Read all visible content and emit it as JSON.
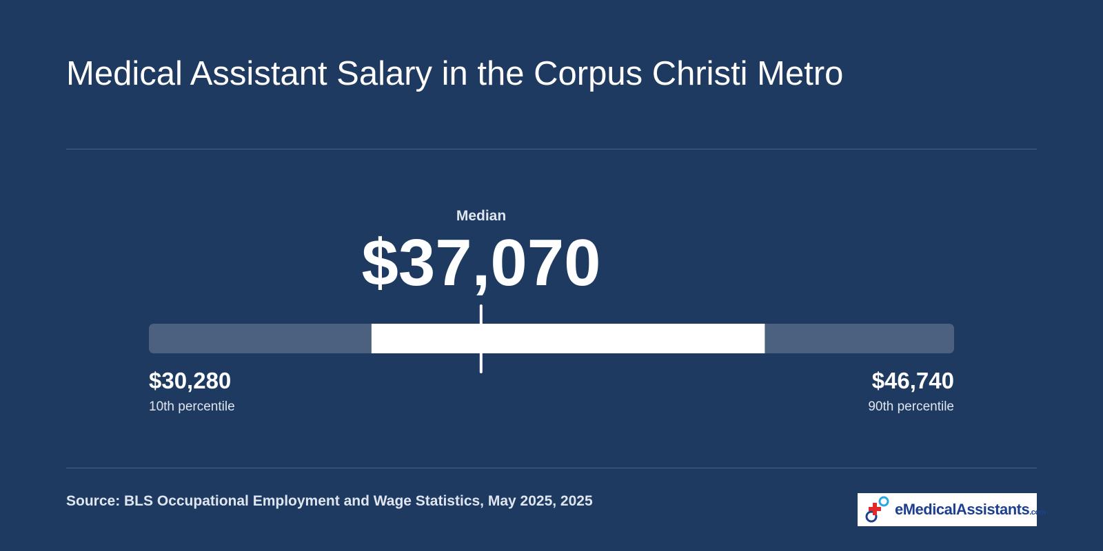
{
  "chart_data": {
    "type": "range",
    "title": "Medical Assistant Salary in the Corpus Christi Metro",
    "median": {
      "label": "Median",
      "value": 37070,
      "value_label": "$37,070"
    },
    "low": {
      "label": "10th percentile",
      "value": 30280,
      "value_label": "$30,280"
    },
    "high": {
      "label": "90th percentile",
      "value": 46740,
      "value_label": "$46,740"
    },
    "p25": 34830,
    "p75": 42870,
    "source": "Source: BLS Occupational Employment and Wage Statistics, May 2025, 2025",
    "logo": {
      "name": "eMedicalAssistants",
      "suffix": ".com"
    }
  }
}
